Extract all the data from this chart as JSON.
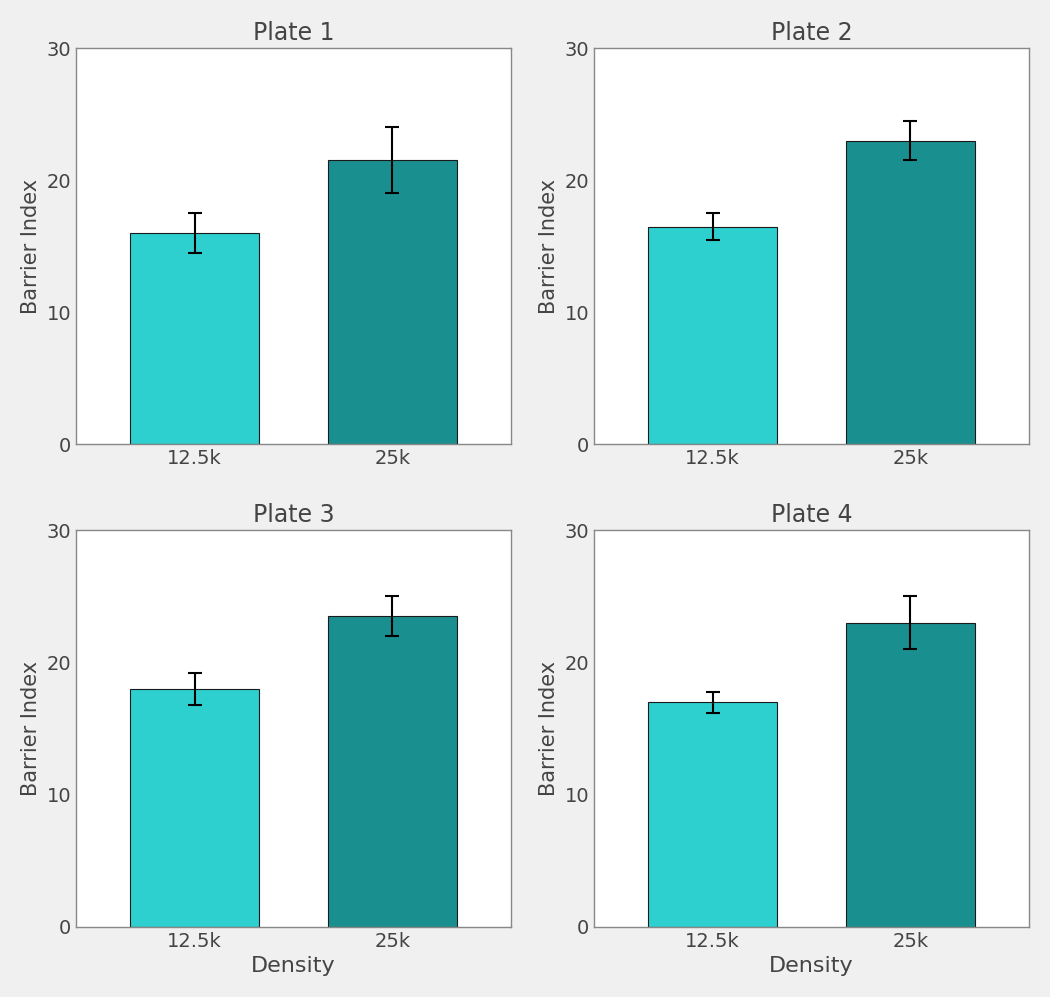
{
  "plates": [
    "Plate 1",
    "Plate 2",
    "Plate 3",
    "Plate 4"
  ],
  "categories": [
    "12.5k",
    "25k"
  ],
  "values": [
    [
      16.0,
      21.5
    ],
    [
      16.5,
      23.0
    ],
    [
      18.0,
      23.5
    ],
    [
      17.0,
      23.0
    ]
  ],
  "errors": [
    [
      1.5,
      2.5
    ],
    [
      1.0,
      1.5
    ],
    [
      1.2,
      1.5
    ],
    [
      0.8,
      2.0
    ]
  ],
  "bar_colors": [
    "#2ecfcf",
    "#1a8f8f"
  ],
  "bar_edgecolor": "#1a1a1a",
  "ylabel": "Barrier Index",
  "xlabel": "Density",
  "ylim": [
    0,
    30
  ],
  "yticks": [
    0,
    10,
    20,
    30
  ],
  "figure_facecolor": "#f0f0f0",
  "axes_facecolor": "#ffffff",
  "title_fontsize": 17,
  "label_fontsize": 15,
  "tick_fontsize": 14,
  "xlabel_fontsize": 16,
  "show_xlabel": [
    false,
    false,
    true,
    true
  ],
  "spine_color": "#888888"
}
